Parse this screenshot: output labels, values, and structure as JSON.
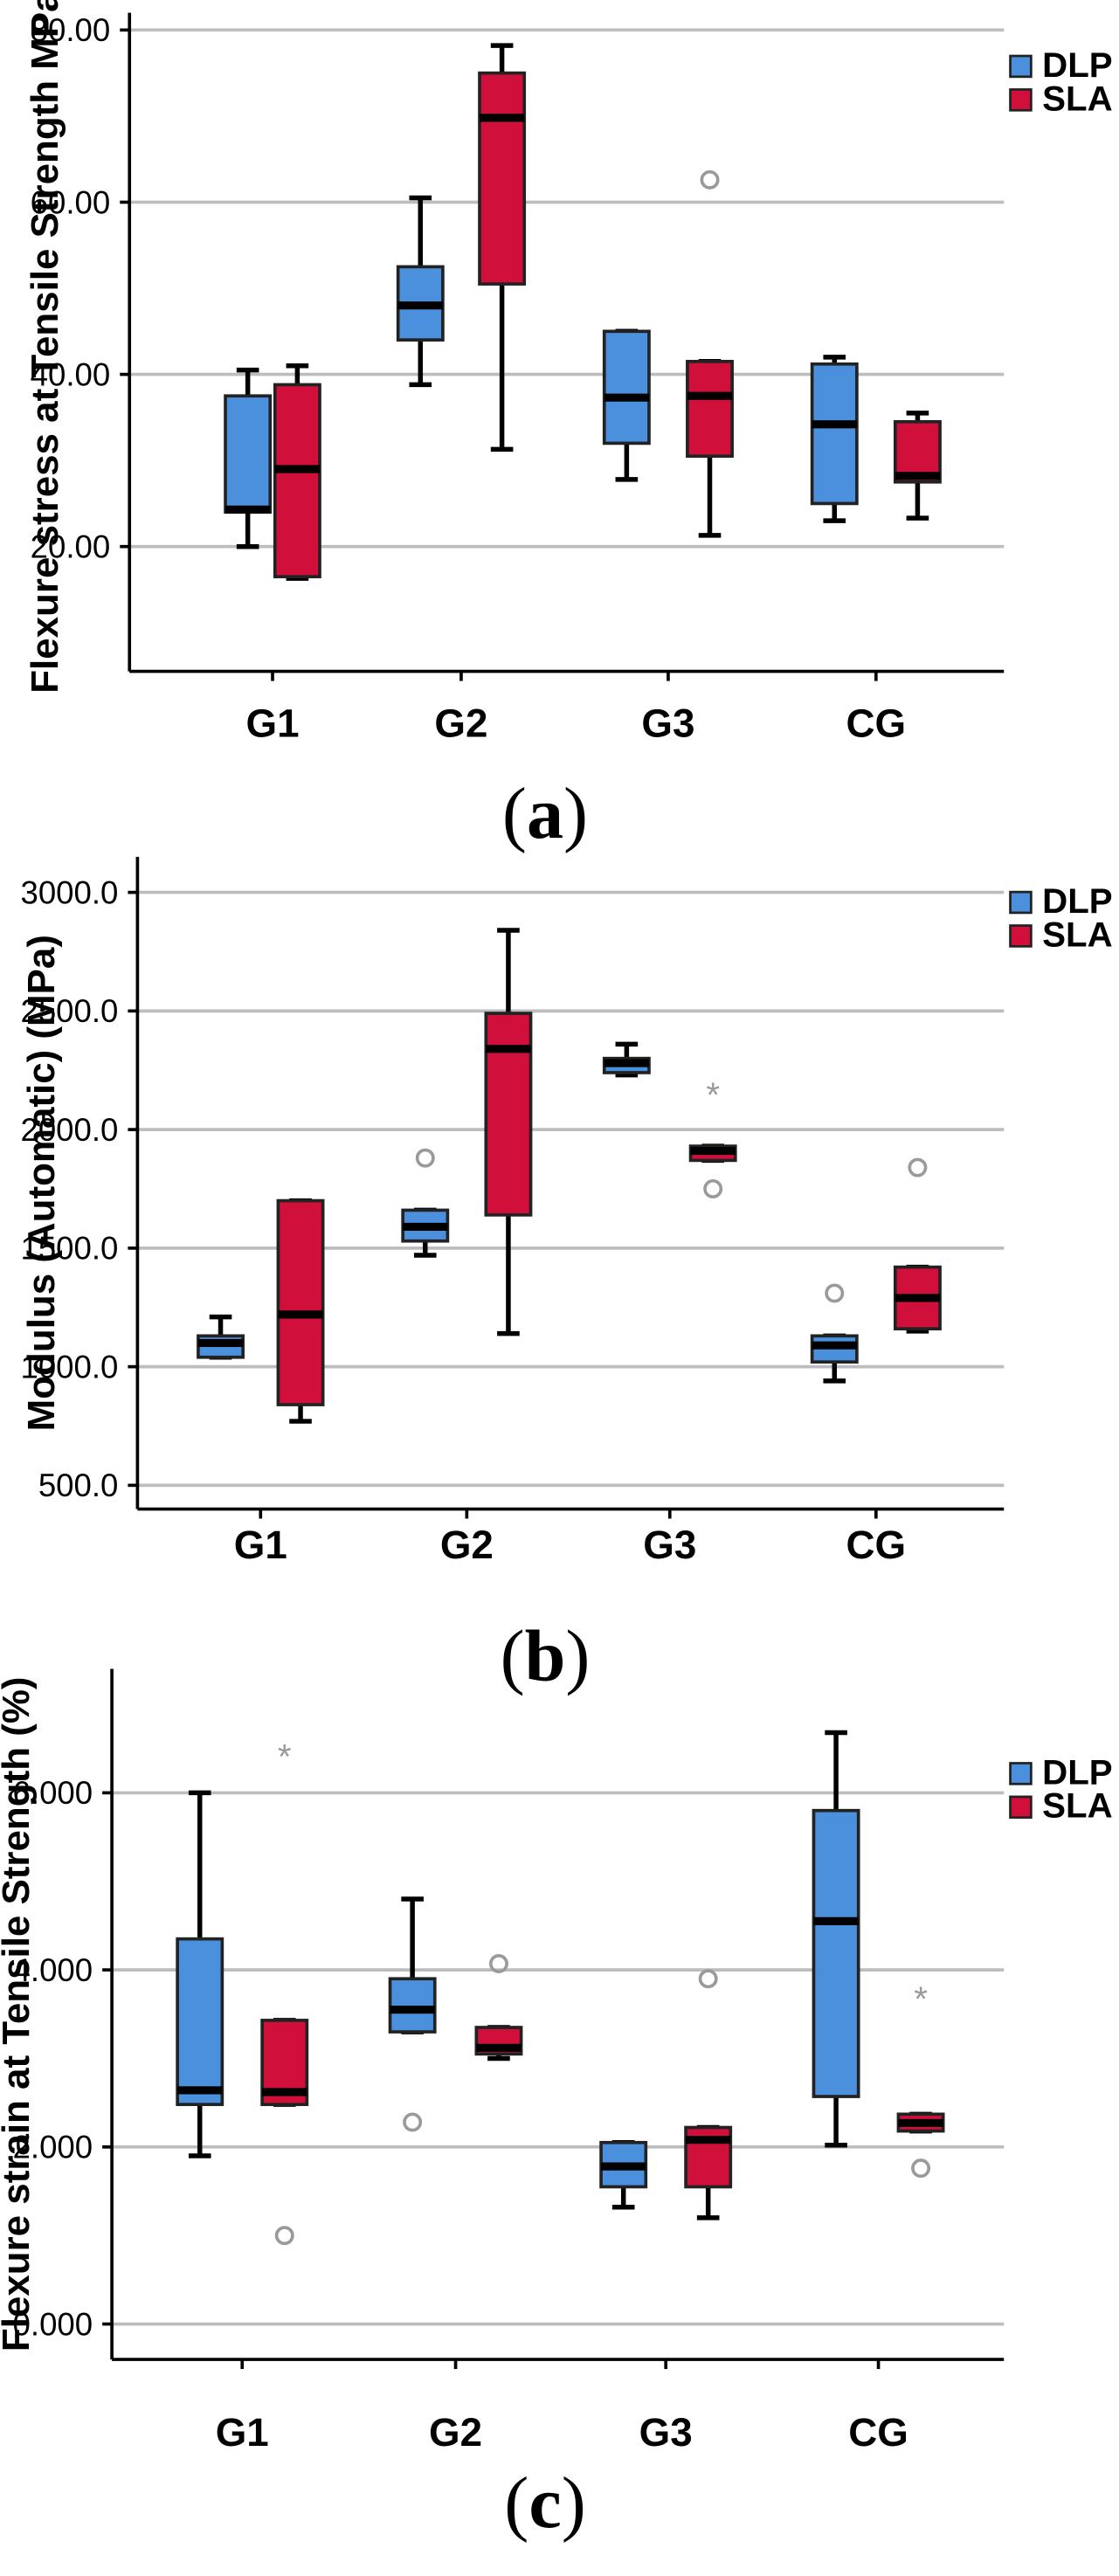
{
  "colors": {
    "DLP": "#4a90dd",
    "SLA": "#d0103a"
  },
  "chart_data": [
    {
      "type": "box",
      "panel": "a",
      "caption_open": "(",
      "caption_letter": "a",
      "caption_close": ")",
      "ylabel": "Flexure stress at Tensile Strength MPa",
      "ylim": [
        5.5,
        82
      ],
      "yticks": [
        20,
        40,
        60,
        80
      ],
      "ytick_labels": [
        "20.00",
        "40.00",
        "60.00",
        "80.00"
      ],
      "categories": [
        "G1",
        "G2",
        "G3",
        "CG"
      ],
      "legend": [
        "DLP",
        "SLA"
      ],
      "series": [
        {
          "name": "DLP",
          "boxes": [
            {
              "min": 20.0,
              "q1": 24.0,
              "median": 24.3,
              "q3": 37.5,
              "max": 40.5,
              "outliers": []
            },
            {
              "min": 38.8,
              "q1": 44.0,
              "median": 48.0,
              "q3": 52.5,
              "max": 60.5,
              "outliers": []
            },
            {
              "min": 27.8,
              "q1": 32.0,
              "median": 37.3,
              "q3": 45.0,
              "max": 45.0,
              "outliers": []
            },
            {
              "min": 23.0,
              "q1": 25.0,
              "median": 34.2,
              "q3": 41.2,
              "max": 42.0,
              "outliers": []
            }
          ]
        },
        {
          "name": "SLA",
          "boxes": [
            {
              "min": 16.3,
              "q1": 16.5,
              "median": 29.0,
              "q3": 38.8,
              "max": 41.0,
              "outliers": []
            },
            {
              "min": 31.3,
              "q1": 50.5,
              "median": 69.8,
              "q3": 75.0,
              "max": 78.2,
              "outliers": []
            },
            {
              "min": 21.3,
              "q1": 30.5,
              "median": 37.5,
              "q3": 41.5,
              "max": 41.5,
              "outliers": [
                {
                  "value": 62.6,
                  "symbol": "circle"
                }
              ]
            },
            {
              "min": 23.3,
              "q1": 27.5,
              "median": 28.2,
              "q3": 34.5,
              "max": 35.5,
              "outliers": []
            }
          ]
        }
      ]
    },
    {
      "type": "box",
      "panel": "b",
      "caption_open": "(",
      "caption_letter": "b",
      "caption_close": ")",
      "ylabel": "Modulus (Automatic) (MPa)",
      "ylim": [
        400,
        3150
      ],
      "yticks": [
        500,
        1000,
        1500,
        2000,
        2500,
        3000
      ],
      "ytick_labels": [
        "500.0",
        "1000.0",
        "1500.0",
        "2000.0",
        "2500.0",
        "3000.0"
      ],
      "categories": [
        "G1",
        "G2",
        "G3",
        "CG"
      ],
      "legend": [
        "DLP",
        "SLA"
      ],
      "series": [
        {
          "name": "DLP",
          "boxes": [
            {
              "min": 1040,
              "q1": 1040,
              "median": 1100,
              "q3": 1130,
              "max": 1210,
              "outliers": []
            },
            {
              "min": 1470,
              "q1": 1530,
              "median": 1590,
              "q3": 1660,
              "max": 1660,
              "outliers": [
                {
                  "value": 1880,
                  "symbol": "circle"
                }
              ]
            },
            {
              "min": 2230,
              "q1": 2240,
              "median": 2280,
              "q3": 2300,
              "max": 2360,
              "outliers": []
            },
            {
              "min": 940,
              "q1": 1020,
              "median": 1090,
              "q3": 1130,
              "max": 1130,
              "outliers": [
                {
                  "value": 1310,
                  "symbol": "circle"
                }
              ]
            }
          ]
        },
        {
          "name": "SLA",
          "boxes": [
            {
              "min": 770,
              "q1": 840,
              "median": 1220,
              "q3": 1700,
              "max": 1700,
              "outliers": []
            },
            {
              "min": 1140,
              "q1": 1640,
              "median": 2340,
              "q3": 2490,
              "max": 2840,
              "outliers": []
            },
            {
              "min": 1870,
              "q1": 1870,
              "median": 1910,
              "q3": 1930,
              "max": 1930,
              "outliers": [
                {
                  "value": 2150,
                  "symbol": "star"
                },
                {
                  "value": 1750,
                  "symbol": "circle"
                }
              ]
            },
            {
              "min": 1150,
              "q1": 1160,
              "median": 1290,
              "q3": 1420,
              "max": 1420,
              "outliers": [
                {
                  "value": 1840,
                  "symbol": "circle"
                }
              ]
            }
          ]
        }
      ]
    },
    {
      "type": "box",
      "panel": "c",
      "caption_open": "(",
      "caption_letter": "c",
      "caption_close": ")",
      "ylabel": "Flexure strain at Tensile Strength (%)",
      "ylim": [
        -0.4,
        7.4
      ],
      "yticks": [
        0,
        2,
        4,
        6
      ],
      "ytick_labels": [
        "0.000",
        "2.000",
        "4.000",
        "6.000"
      ],
      "categories": [
        "G1",
        "G2",
        "G3",
        "CG"
      ],
      "legend": [
        "DLP",
        "SLA"
      ],
      "series": [
        {
          "name": "DLP",
          "boxes": [
            {
              "min": 1.9,
              "q1": 2.48,
              "median": 2.64,
              "q3": 4.35,
              "max": 6.0,
              "outliers": []
            },
            {
              "min": 3.3,
              "q1": 3.3,
              "median": 3.55,
              "q3": 3.9,
              "max": 4.8,
              "outliers": [
                {
                  "value": 2.28,
                  "symbol": "circle"
                }
              ]
            },
            {
              "min": 1.32,
              "q1": 1.55,
              "median": 1.78,
              "q3": 2.05,
              "max": 2.05,
              "outliers": []
            },
            {
              "min": 2.02,
              "q1": 2.57,
              "median": 4.55,
              "q3": 5.8,
              "max": 6.68,
              "outliers": []
            }
          ]
        },
        {
          "name": "SLA",
          "boxes": [
            {
              "min": 2.48,
              "q1": 2.48,
              "median": 2.62,
              "q3": 3.43,
              "max": 3.43,
              "outliers": [
                {
                  "value": 6.42,
                  "symbol": "star"
                },
                {
                  "value": 1.0,
                  "symbol": "circle"
                }
              ]
            },
            {
              "min": 3.0,
              "q1": 3.05,
              "median": 3.12,
              "q3": 3.35,
              "max": 3.35,
              "outliers": [
                {
                  "value": 4.07,
                  "symbol": "circle"
                }
              ]
            },
            {
              "min": 1.2,
              "q1": 1.55,
              "median": 2.08,
              "q3": 2.22,
              "max": 2.22,
              "outliers": [
                {
                  "value": 3.9,
                  "symbol": "circle"
                }
              ]
            },
            {
              "min": 2.18,
              "q1": 2.18,
              "median": 2.27,
              "q3": 2.37,
              "max": 2.37,
              "outliers": [
                {
                  "value": 3.68,
                  "symbol": "star"
                },
                {
                  "value": 1.76,
                  "symbol": "circle"
                }
              ]
            }
          ]
        }
      ]
    }
  ]
}
